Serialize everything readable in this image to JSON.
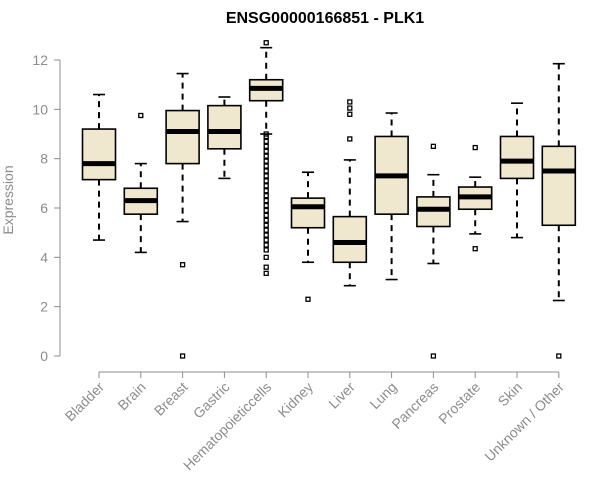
{
  "chart_data": {
    "type": "boxplot",
    "title": "ENSG00000166851 - PLK1",
    "xlabel": "",
    "ylabel": "Expression",
    "ylim": [
      0,
      12.5
    ],
    "yticks": [
      "0",
      "2",
      "4",
      "6",
      "8",
      "10",
      "12"
    ],
    "categories": [
      "Bladder",
      "Brain",
      "Breast",
      "Gastric",
      "Hematopoieticcells",
      "Kidney",
      "Liver",
      "Lung",
      "Pancreas",
      "Prostate",
      "Skin",
      "Unknown / Other"
    ],
    "boxes": [
      {
        "name": "Bladder",
        "min": 4.7,
        "q1": 7.15,
        "median": 7.8,
        "q3": 9.2,
        "max": 10.6,
        "outliers": []
      },
      {
        "name": "Brain",
        "min": 4.2,
        "q1": 5.75,
        "median": 6.3,
        "q3": 6.8,
        "max": 7.8,
        "outliers": [
          9.75
        ]
      },
      {
        "name": "Breast",
        "min": 5.45,
        "q1": 7.8,
        "median": 9.1,
        "q3": 9.95,
        "max": 11.45,
        "outliers": [
          3.7,
          0.0
        ]
      },
      {
        "name": "Gastric",
        "min": 7.2,
        "q1": 8.4,
        "median": 9.1,
        "q3": 10.15,
        "max": 10.5,
        "outliers": []
      },
      {
        "name": "Hematopoieticcells",
        "min": 9.0,
        "q1": 10.35,
        "median": 10.85,
        "q3": 11.2,
        "max": 12.5,
        "outliers": [
          12.7,
          9.0,
          8.9,
          8.7,
          8.5,
          8.3,
          8.1,
          7.9,
          7.7,
          7.5,
          7.3,
          7.1,
          6.9,
          6.7,
          6.5,
          6.3,
          6.1,
          5.9,
          5.7,
          5.5,
          5.3,
          5.1,
          4.9,
          4.7,
          4.5,
          4.3,
          4.0,
          3.6,
          3.35
        ]
      },
      {
        "name": "Kidney",
        "min": 3.8,
        "q1": 5.2,
        "median": 6.05,
        "q3": 6.4,
        "max": 7.45,
        "outliers": [
          2.3
        ]
      },
      {
        "name": "Liver",
        "min": 2.85,
        "q1": 3.8,
        "median": 4.6,
        "q3": 5.65,
        "max": 7.95,
        "outliers": [
          10.3,
          10.05,
          9.8,
          8.8
        ]
      },
      {
        "name": "Lung",
        "min": 3.1,
        "q1": 5.75,
        "median": 7.3,
        "q3": 8.9,
        "max": 9.85,
        "outliers": []
      },
      {
        "name": "Pancreas",
        "min": 3.75,
        "q1": 5.25,
        "median": 5.95,
        "q3": 6.45,
        "max": 7.35,
        "outliers": [
          8.5,
          0.0
        ]
      },
      {
        "name": "Prostate",
        "min": 4.95,
        "q1": 5.95,
        "median": 6.45,
        "q3": 6.85,
        "max": 7.25,
        "outliers": [
          8.45,
          4.35
        ]
      },
      {
        "name": "Skin",
        "min": 4.8,
        "q1": 7.2,
        "median": 7.9,
        "q3": 8.9,
        "max": 10.25,
        "outliers": []
      },
      {
        "name": "Unknown / Other",
        "min": 2.25,
        "q1": 5.3,
        "median": 7.5,
        "q3": 8.5,
        "max": 11.85,
        "outliers": [
          0.0
        ]
      }
    ]
  }
}
